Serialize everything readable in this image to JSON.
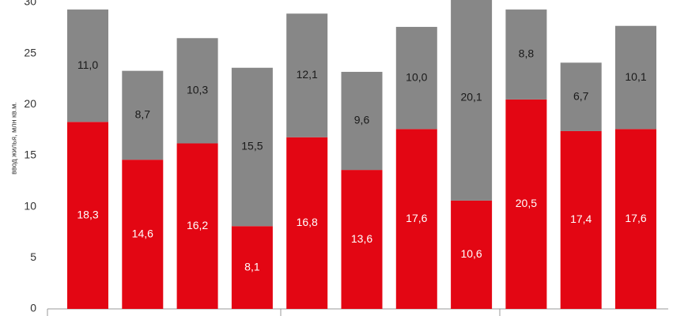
{
  "chart_data": {
    "type": "stacked_bar",
    "y_axis_label": "ввод жилья, млн кв.м.",
    "categories": [
      null,
      null,
      null,
      null,
      null,
      null,
      null,
      null,
      null,
      null,
      null
    ],
    "series": [
      {
        "color": "#e30613",
        "label_color": "#ffffff",
        "values": [
          18.3,
          14.6,
          16.2,
          8.1,
          16.8,
          13.6,
          17.6,
          10.6,
          20.5,
          17.4,
          17.6
        ],
        "value_labels": [
          "18,3",
          "14,6",
          "16,2",
          "8,1",
          "16,8",
          "13,6",
          "17,6",
          "10,6",
          "20,5",
          "17,4",
          "17,6"
        ]
      },
      {
        "color": "#878787",
        "label_color": "#1a1a1a",
        "values": [
          11.0,
          8.7,
          10.3,
          15.5,
          12.1,
          9.6,
          10.0,
          20.1,
          8.8,
          6.7,
          10.1
        ],
        "value_labels": [
          "11,0",
          "8,7",
          "10,3",
          "15,5",
          "12,1",
          "9,6",
          "10,0",
          "20,1",
          "8,8",
          "6,7",
          "10,1"
        ]
      }
    ],
    "ylim": [
      0,
      30
    ],
    "yticks": [
      0,
      5,
      10,
      15,
      20,
      25,
      30
    ]
  }
}
